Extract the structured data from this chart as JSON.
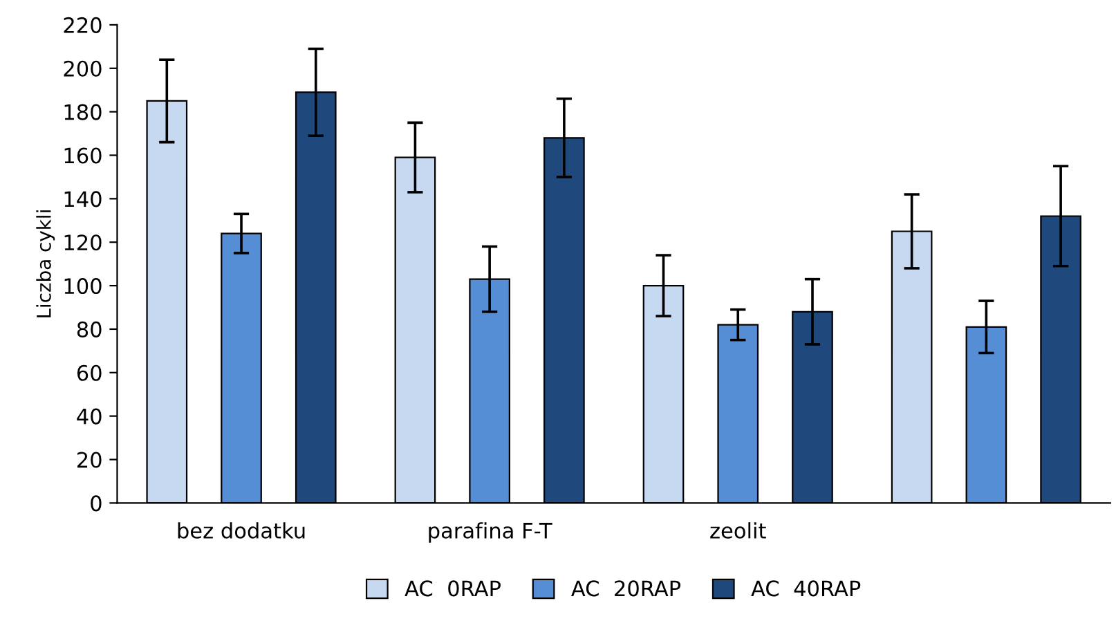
{
  "chart_data": {
    "type": "bar",
    "ylabel": "Liczba cykli",
    "categories": [
      "bez dodatku",
      "parafina F-T",
      "zeolit",
      null
    ],
    "series": [
      {
        "name": "AC  0RAP",
        "color": "#c6d9f1",
        "values": [
          185,
          159,
          100,
          125
        ],
        "errors": [
          19,
          16,
          14,
          17
        ]
      },
      {
        "name": "AC  20RAP",
        "color": "#558ed5",
        "values": [
          124,
          103,
          82,
          81
        ],
        "errors": [
          9,
          15,
          7,
          12
        ]
      },
      {
        "name": "AC  40RAP",
        "color": "#1f497d",
        "values": [
          189,
          168,
          88,
          132
        ],
        "errors": [
          20,
          18,
          15,
          23
        ]
      }
    ],
    "ylim": [
      0,
      220
    ],
    "yticks": [
      0,
      20,
      40,
      60,
      80,
      100,
      120,
      140,
      160,
      180,
      200,
      220
    ],
    "grid": false,
    "legend": "bottom"
  }
}
